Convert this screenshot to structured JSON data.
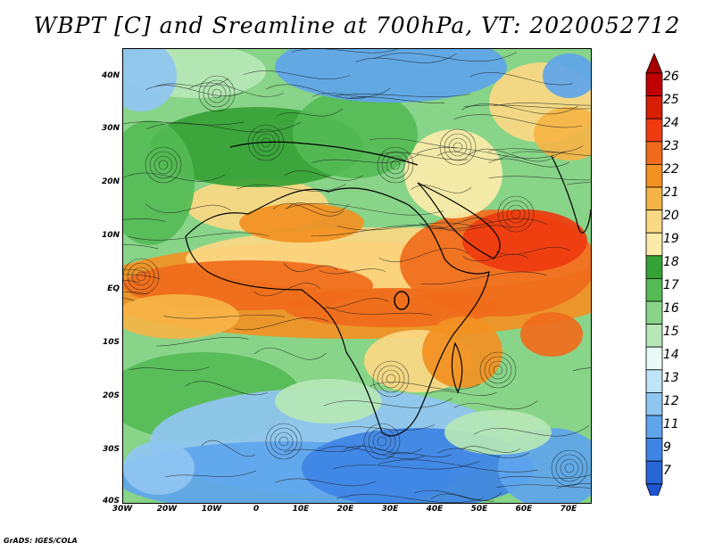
{
  "title": "WBPT [C] and Sreamline at 700hPa, VT: 2020052712",
  "footer": "GrADS: IGES/COLA",
  "map": {
    "lat_labels": [
      "40N",
      "30N",
      "20N",
      "10N",
      "EQ",
      "10S",
      "20S",
      "30S",
      "40S"
    ],
    "lon_labels": [
      "30W",
      "20W",
      "10W",
      "0",
      "10E",
      "20E",
      "30E",
      "40E",
      "50E",
      "60E",
      "70E"
    ],
    "lon_range": [
      -30,
      75
    ],
    "lat_range": [
      -40,
      45
    ]
  },
  "colorbar": {
    "labels": [
      "26",
      "25",
      "24",
      "23",
      "22",
      "21",
      "20",
      "19",
      "18",
      "17",
      "16",
      "15",
      "14",
      "13",
      "12",
      "11",
      "9",
      "7"
    ],
    "colors": [
      "#c00000",
      "#d81e05",
      "#ef3b0f",
      "#f06b1b",
      "#f39022",
      "#f6b447",
      "#fbd883",
      "#fbeba8",
      "#35a235",
      "#55bb55",
      "#88d488",
      "#b6e7b6",
      "#e8fbf6",
      "#bfe3f7",
      "#90c6f2",
      "#5ea5ec",
      "#3e84e4",
      "#2866d8"
    ],
    "top_arrow_color": "#a80000",
    "bottom_arrow_color": "#1f55d2"
  }
}
